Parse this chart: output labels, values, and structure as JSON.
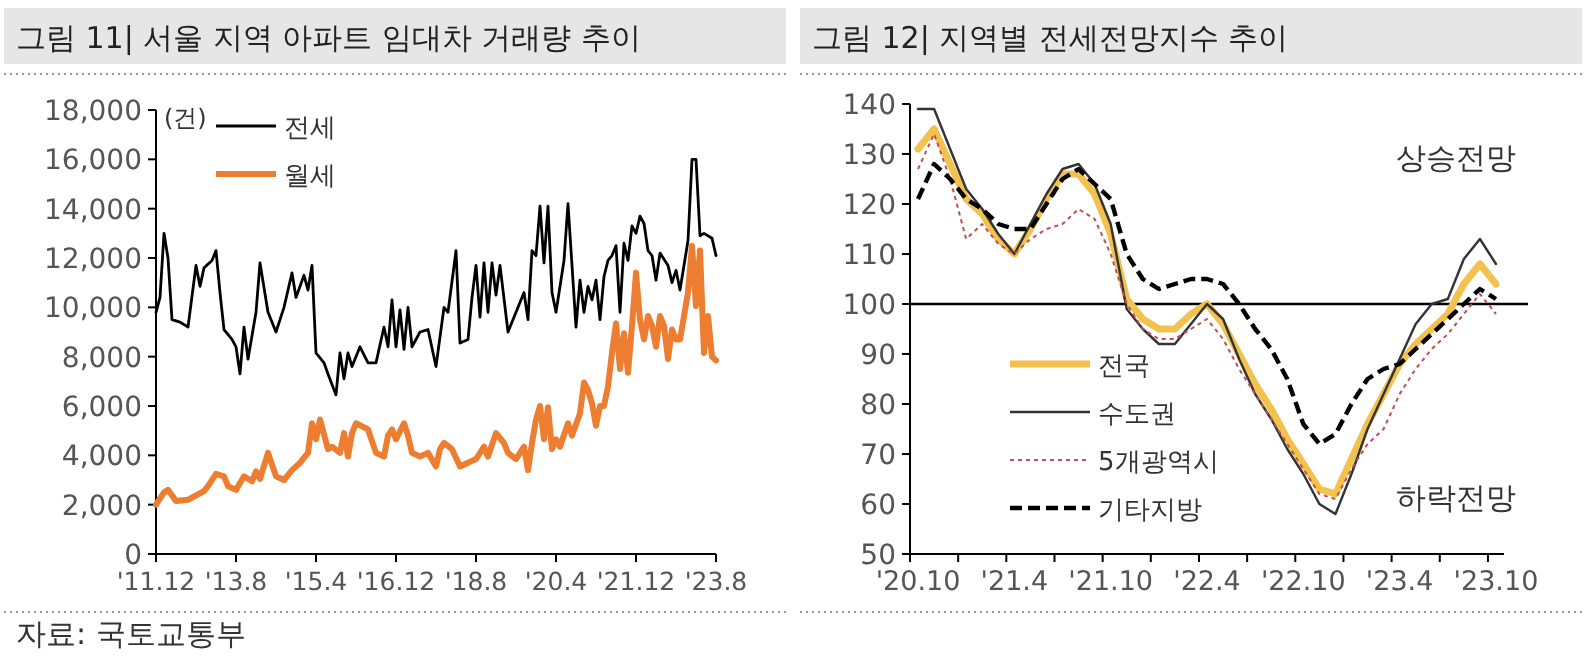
{
  "chart_data": [
    {
      "type": "line",
      "title": "그림 11| 서울 지역 아파트 임대차 거래량 추이",
      "ylabel": "(건)",
      "annotations": [
        "자료: 국토교통부"
      ],
      "legend": "top left",
      "xlim": [
        "2011-12",
        "2023-08"
      ],
      "xticks": [
        {
          "value": "2011-12",
          "label": "'11.12"
        },
        {
          "value": "2013-08",
          "label": "'13.8"
        },
        {
          "value": "2015-04",
          "label": "'15.4"
        },
        {
          "value": "2016-12",
          "label": "'16.12"
        },
        {
          "value": "2018-08",
          "label": "'18.8"
        },
        {
          "value": "2020-04",
          "label": "'20.4"
        },
        {
          "value": "2021-12",
          "label": "'21.12"
        },
        {
          "value": "2023-08",
          "label": "'23.8"
        }
      ],
      "ylim": [
        0,
        18000
      ],
      "yticks": [
        0,
        {
          "value": 2000,
          "label": "2,000"
        },
        {
          "value": 4000,
          "label": "4,000"
        },
        {
          "value": 6000,
          "label": "6,000"
        },
        {
          "value": 8000,
          "label": "8,000"
        },
        {
          "value": 10000,
          "label": "10,000"
        },
        {
          "value": 12000,
          "label": "12,000"
        },
        {
          "value": 14000,
          "label": "14,000"
        },
        {
          "value": 16000,
          "label": "16,000"
        },
        {
          "value": 18000,
          "label": "18,000"
        }
      ],
      "series": [
        {
          "name": "전세",
          "color": "#000000",
          "line_style": "solid",
          "x": [
            "2011-12",
            "2012-01",
            "2012-02",
            "2012-03",
            "2012-04",
            "2012-06",
            "2012-08",
            "2012-10",
            "2012-11",
            "2012-12",
            "2013-02",
            "2013-03",
            "2013-04",
            "2013-05",
            "2013-07",
            "2013-08",
            "2013-09",
            "2013-10",
            "2013-11",
            "2014-01",
            "2014-02",
            "2014-04",
            "2014-06",
            "2014-08",
            "2014-10",
            "2014-11",
            "2015-01",
            "2015-02",
            "2015-03",
            "2015-04",
            "2015-06",
            "2015-07",
            "2015-09",
            "2015-10",
            "2015-11",
            "2015-12",
            "2016-01",
            "2016-03",
            "2016-05",
            "2016-07",
            "2016-09",
            "2016-10",
            "2016-11",
            "2016-12",
            "2017-01",
            "2017-02",
            "2017-03",
            "2017-04",
            "2017-06",
            "2017-08",
            "2017-10",
            "2017-12",
            "2018-01",
            "2018-03",
            "2018-04",
            "2018-06",
            "2018-07",
            "2018-08",
            "2018-09",
            "2018-10",
            "2018-11",
            "2018-12",
            "2019-01",
            "2019-02",
            "2019-04",
            "2019-06",
            "2019-08",
            "2019-09",
            "2019-10",
            "2019-11",
            "2019-12",
            "2020-01",
            "2020-02",
            "2020-03",
            "2020-04",
            "2020-06",
            "2020-07",
            "2020-09",
            "2020-10",
            "2020-11",
            "2020-12",
            "2021-01",
            "2021-02",
            "2021-03",
            "2021-04",
            "2021-05",
            "2021-06",
            "2021-07",
            "2021-08",
            "2021-09",
            "2021-10",
            "2021-11",
            "2021-12",
            "2022-01",
            "2022-02",
            "2022-03",
            "2022-04",
            "2022-05",
            "2022-06",
            "2022-08",
            "2022-09",
            "2022-10",
            "2022-11",
            "2023-01",
            "2023-02",
            "2023-03",
            "2023-04",
            "2023-05",
            "2023-07",
            "2023-08"
          ],
          "values": [
            9800,
            10400,
            13000,
            12000,
            9500,
            9400,
            9200,
            11700,
            10850,
            11600,
            11900,
            12300,
            10600,
            9100,
            8700,
            8400,
            7300,
            9200,
            7900,
            9800,
            11800,
            9800,
            9000,
            10000,
            11400,
            10400,
            11300,
            10700,
            11700,
            8150,
            7750,
            7300,
            6450,
            8150,
            7100,
            8150,
            7600,
            8400,
            7750,
            7750,
            9200,
            8400,
            10300,
            8400,
            9900,
            8300,
            10000,
            8400,
            9000,
            9100,
            7600,
            10000,
            9800,
            12300,
            8550,
            8700,
            10400,
            11700,
            9600,
            11800,
            9800,
            11800,
            10500,
            11700,
            9000,
            9800,
            10600,
            9500,
            12300,
            12100,
            14100,
            11800,
            14100,
            10600,
            9800,
            11900,
            14200,
            9200,
            11100,
            9800,
            10850,
            10300,
            11100,
            9500,
            11250,
            11900,
            12100,
            12500,
            9800,
            12600,
            11900,
            13300,
            13000,
            13700,
            13400,
            12300,
            12100,
            11100,
            12200,
            11700,
            11000,
            11500,
            10700,
            12700,
            16000,
            16000,
            12900,
            13000,
            12800,
            12100
          ]
        },
        {
          "name": "월세",
          "color": "#ed7d31",
          "line_style": "solid",
          "x": [
            "2011-12",
            "2012-02",
            "2012-03",
            "2012-05",
            "2012-08",
            "2012-12",
            "2013-01",
            "2013-03",
            "2013-05",
            "2013-06",
            "2013-08",
            "2013-10",
            "2013-12",
            "2014-01",
            "2014-02",
            "2014-04",
            "2014-06",
            "2014-08",
            "2014-10",
            "2014-12",
            "2015-02",
            "2015-03",
            "2015-04",
            "2015-05",
            "2015-07",
            "2015-08",
            "2015-10",
            "2015-11",
            "2015-12",
            "2016-01",
            "2016-02",
            "2016-05",
            "2016-07",
            "2016-09",
            "2016-10",
            "2016-11",
            "2016-12",
            "2017-02",
            "2017-03",
            "2017-04",
            "2017-06",
            "2017-08",
            "2017-10",
            "2017-11",
            "2017-12",
            "2018-02",
            "2018-04",
            "2018-06",
            "2018-08",
            "2018-10",
            "2018-11",
            "2019-01",
            "2019-03",
            "2019-04",
            "2019-06",
            "2019-08",
            "2019-09",
            "2019-10",
            "2019-11",
            "2019-12",
            "2020-01",
            "2020-02",
            "2020-03",
            "2020-04",
            "2020-05",
            "2020-07",
            "2020-08",
            "2020-10",
            "2020-11",
            "2020-12",
            "2021-01",
            "2021-02",
            "2021-03",
            "2021-04",
            "2021-05",
            "2021-06",
            "2021-07",
            "2021-08",
            "2021-09",
            "2021-10",
            "2021-11",
            "2021-12",
            "2022-01",
            "2022-02",
            "2022-03",
            "2022-04",
            "2022-05",
            "2022-06",
            "2022-07",
            "2022-08",
            "2022-09",
            "2022-10",
            "2022-11",
            "2022-12",
            "2023-01",
            "2023-02",
            "2023-03",
            "2023-04",
            "2023-05",
            "2023-06",
            "2023-07",
            "2023-08"
          ],
          "values": [
            2000,
            2500,
            2600,
            2150,
            2200,
            2550,
            2750,
            3250,
            3150,
            2750,
            2600,
            3150,
            2950,
            3350,
            3050,
            4100,
            3150,
            3000,
            3400,
            3700,
            4100,
            5300,
            4650,
            5450,
            4250,
            4350,
            4100,
            4900,
            3950,
            4900,
            5300,
            5050,
            4100,
            3950,
            4800,
            5050,
            4650,
            5300,
            4800,
            4100,
            3950,
            4100,
            3550,
            4250,
            4500,
            4250,
            3550,
            3700,
            3850,
            4350,
            3950,
            4900,
            4500,
            4100,
            3850,
            4350,
            3400,
            4500,
            5450,
            6000,
            4650,
            5950,
            4250,
            4650,
            4350,
            5300,
            4800,
            5700,
            6950,
            6650,
            6100,
            5200,
            6000,
            6000,
            6800,
            8150,
            9350,
            7500,
            8950,
            7350,
            9250,
            11400,
            9500,
            8700,
            9650,
            9250,
            8400,
            9650,
            9250,
            7900,
            9100,
            8700,
            8700,
            9650,
            10600,
            12500,
            10050,
            12300,
            8150,
            9650,
            8000,
            7850
          ]
        }
      ]
    },
    {
      "type": "line",
      "title": "그림 12| 지역별 전세전망지수 추이",
      "annotations": [
        "상승전망",
        "하락전망"
      ],
      "legend": "bottom left",
      "categories": [
        "'20.10",
        null,
        null,
        null,
        null,
        null,
        "'21.4",
        null,
        null,
        null,
        null,
        null,
        "'21.10",
        null,
        null,
        null,
        null,
        null,
        "'22.4",
        null,
        null,
        null,
        null,
        null,
        "'22.10",
        null,
        null,
        null,
        null,
        null,
        "'23.4",
        null,
        null,
        null,
        null,
        null,
        "'23.10"
      ],
      "ylim": [
        50,
        140
      ],
      "yticks": [
        50,
        60,
        70,
        80,
        90,
        100,
        110,
        120,
        130,
        140
      ],
      "ref_lines": [
        {
          "axis": "y",
          "value": 100,
          "color": "#000000"
        }
      ],
      "series": [
        {
          "name": "전국",
          "color": "#f2c14e",
          "line_style": "solid",
          "values": [
            131,
            135,
            128,
            121,
            118,
            113,
            110,
            115,
            121,
            126,
            126,
            122,
            114,
            101,
            97,
            95,
            95,
            98,
            100,
            96,
            90,
            84,
            79,
            73,
            68,
            63,
            62,
            69,
            76,
            82,
            88,
            92,
            95,
            98,
            104,
            108,
            104
          ]
        },
        {
          "name": "수도권",
          "color": "#333333",
          "line_style": "solid",
          "values": [
            139,
            139,
            131,
            123,
            119,
            114,
            110,
            116,
            122,
            127,
            128,
            124,
            116,
            99,
            95,
            92,
            92,
            96,
            100,
            97,
            89,
            82,
            77,
            71,
            66,
            60,
            58,
            66,
            75,
            82,
            89,
            96,
            100,
            101,
            109,
            113,
            108
          ]
        },
        {
          "name": "5개광역시",
          "color": "#c0504d",
          "line_style": "dotted",
          "values": [
            127,
            134,
            125,
            113,
            116,
            112,
            110,
            113,
            115,
            116,
            119,
            117,
            110,
            100,
            95,
            93,
            93,
            95,
            97,
            93,
            87,
            82,
            77,
            72,
            67,
            62,
            61,
            67,
            72,
            75,
            82,
            87,
            91,
            94,
            98,
            102,
            98
          ]
        },
        {
          "name": "기타지방",
          "color": "#000000",
          "line_style": "dashed",
          "values": [
            121,
            128,
            125,
            121,
            119,
            116,
            115,
            115,
            120,
            125,
            127,
            124,
            121,
            110,
            105,
            103,
            104,
            105,
            105,
            104,
            100,
            95,
            91,
            85,
            76,
            72,
            74,
            80,
            85,
            87,
            88,
            91,
            94,
            97,
            100,
            103,
            101
          ]
        }
      ]
    }
  ]
}
